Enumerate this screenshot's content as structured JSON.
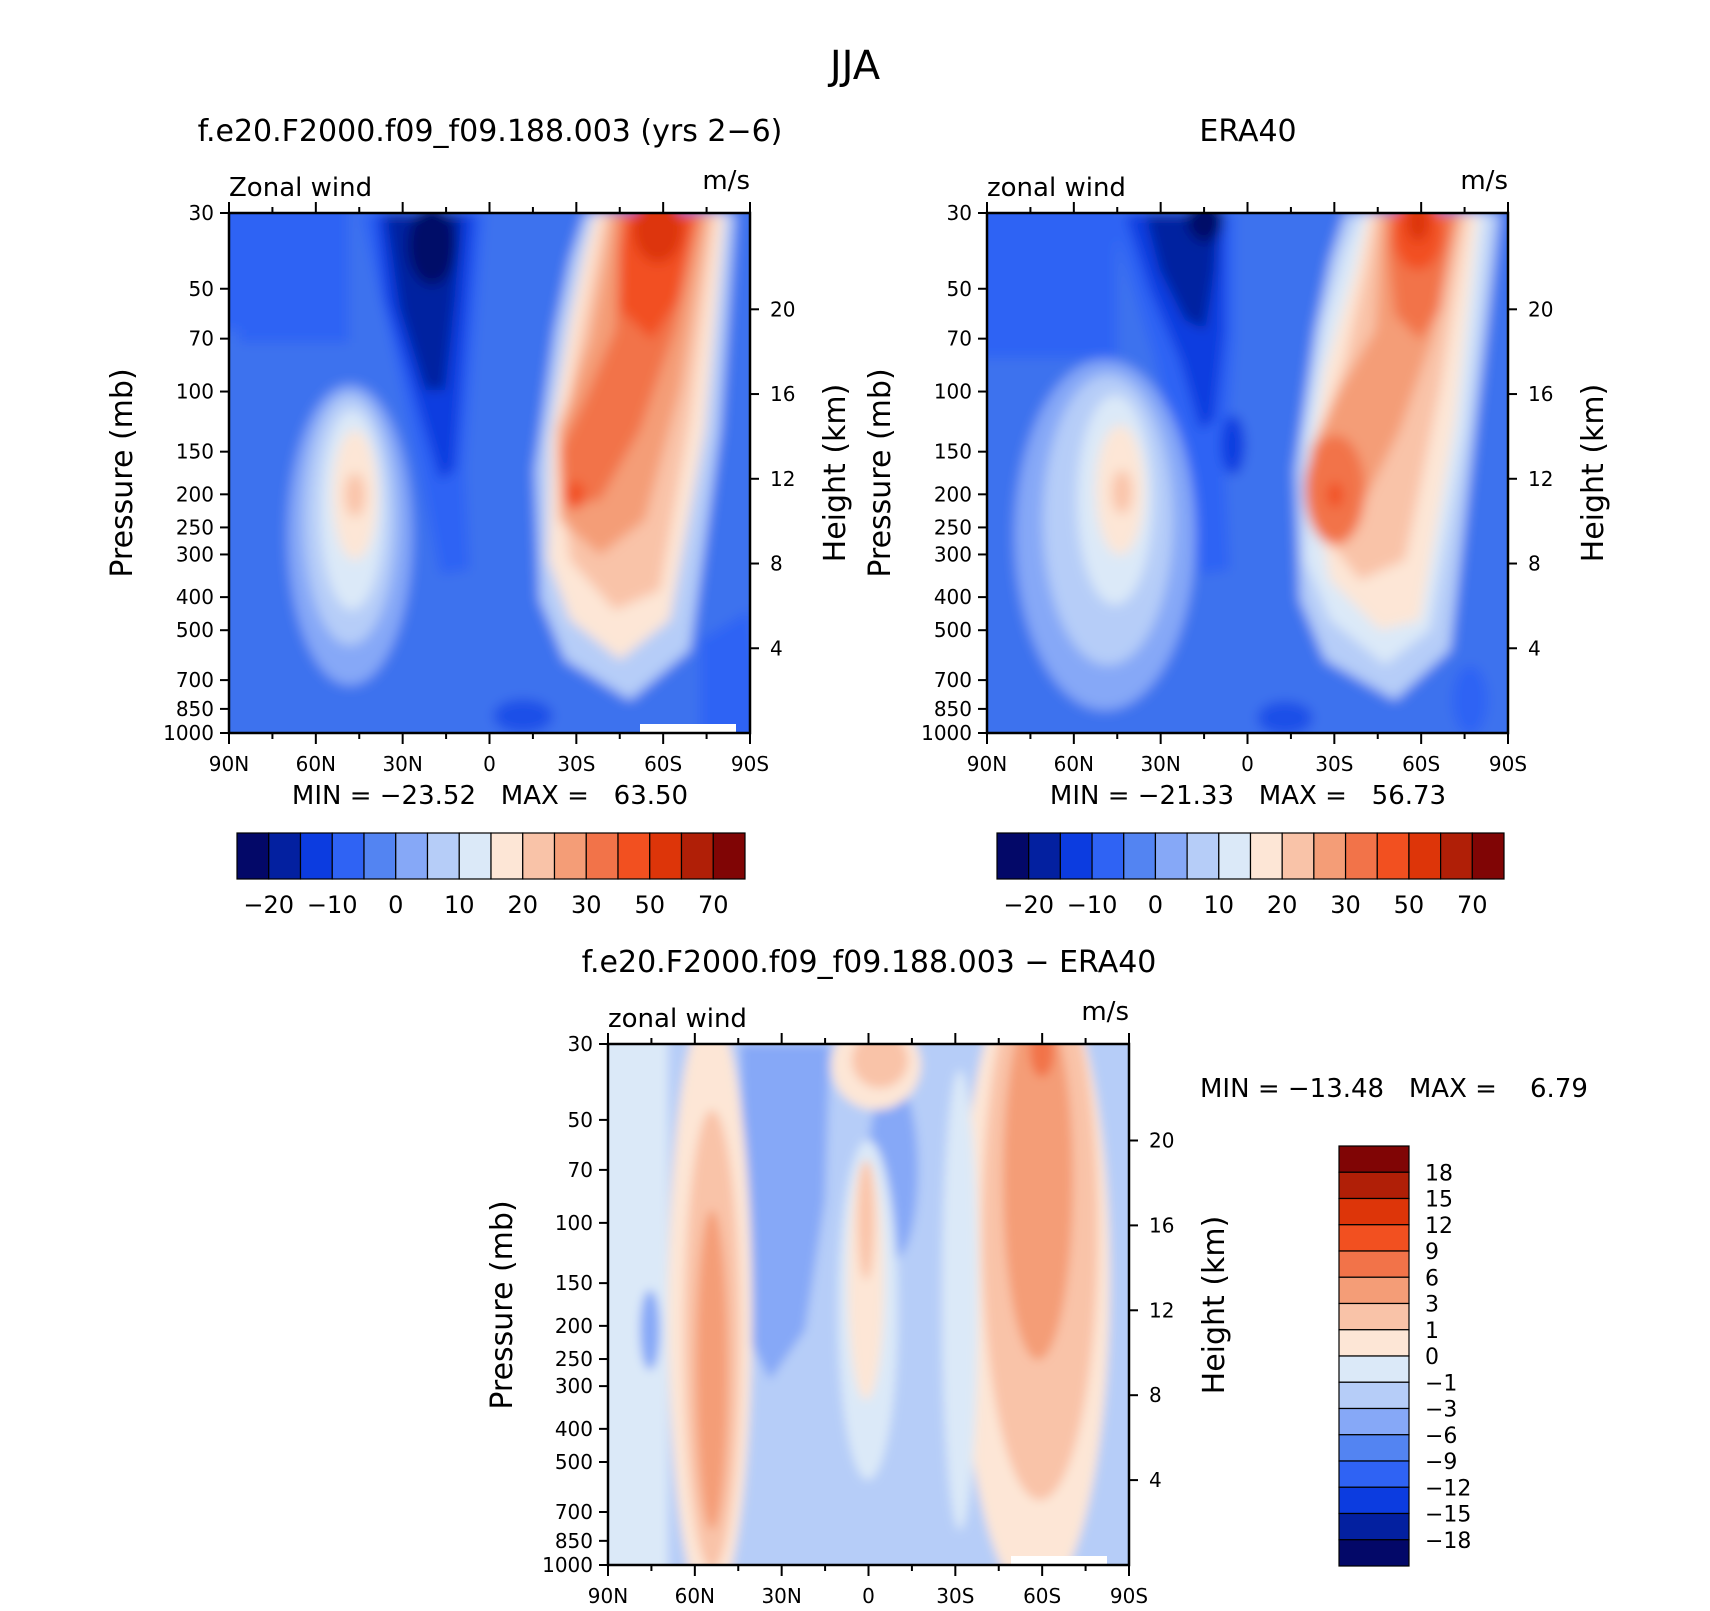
{
  "figure": {
    "title": "JJA"
  },
  "panels": [
    {
      "title": "f.e20.F2000.f09_f09.188.003 (yrs 2−6)",
      "var_label": "Zonal wind",
      "units": "m/s",
      "ylabel": "Pressure (mb)",
      "ylabel_right": "Height (km)",
      "stats": "MIN = −23.52   MAX =   63.50"
    },
    {
      "title": "ERA40",
      "var_label": "zonal wind",
      "units": "m/s",
      "ylabel": "Pressure (mb)",
      "ylabel_right": "Height (km)",
      "stats": "MIN = −21.33   MAX =   56.73"
    },
    {
      "title": "f.e20.F2000.f09_f09.188.003 − ERA40",
      "var_label": "zonal wind",
      "units": "m/s",
      "ylabel": "Pressure (mb)",
      "ylabel_right": "Height (km)",
      "stats": "MIN = −13.48   MAX =    6.79"
    }
  ],
  "chart_data": [
    {
      "type": "heatmap",
      "title": "f.e20.F2000.f09_f09.188.003 (yrs 2−6)",
      "xlabel": "",
      "ylabel": "Pressure (mb)",
      "x_ticks": [
        "90N",
        "60N",
        "30N",
        "0",
        "30S",
        "60S",
        "90S"
      ],
      "x_values": [
        90,
        60,
        30,
        0,
        -30,
        -60,
        -90
      ],
      "y_ticks": [
        30,
        50,
        70,
        100,
        150,
        200,
        250,
        300,
        400,
        500,
        700,
        850,
        1000
      ],
      "y_scale": "log",
      "ylim": [
        1000,
        30
      ],
      "y2_ticks": [
        20,
        16,
        12,
        8,
        4
      ],
      "min": -23.52,
      "max": 63.5,
      "features": [
        {
          "lat": -65,
          "p": 40,
          "value": 55
        },
        {
          "lat": -58,
          "p": 80,
          "value": 45
        },
        {
          "lat": -30,
          "p": 200,
          "value": 50
        },
        {
          "lat": -42,
          "p": 300,
          "value": 30
        },
        {
          "lat": -40,
          "p": 500,
          "value": 15
        },
        {
          "lat": 45,
          "p": 200,
          "value": 18
        },
        {
          "lat": 20,
          "p": 50,
          "value": -20
        },
        {
          "lat": 15,
          "p": 150,
          "value": -10
        }
      ]
    },
    {
      "type": "heatmap",
      "title": "ERA40",
      "xlabel": "",
      "ylabel": "Pressure (mb)",
      "x_ticks": [
        "90N",
        "60N",
        "30N",
        "0",
        "30S",
        "60S",
        "90S"
      ],
      "x_values": [
        90,
        60,
        30,
        0,
        -30,
        -60,
        -90
      ],
      "y_ticks": [
        30,
        50,
        70,
        100,
        150,
        200,
        250,
        300,
        400,
        500,
        700,
        850,
        1000
      ],
      "y_scale": "log",
      "ylim": [
        1000,
        30
      ],
      "y2_ticks": [
        20,
        16,
        12,
        8,
        4
      ],
      "min": -21.33,
      "max": 56.73,
      "features": [
        {
          "lat": -62,
          "p": 40,
          "value": 50
        },
        {
          "lat": -58,
          "p": 90,
          "value": 40
        },
        {
          "lat": -30,
          "p": 200,
          "value": 45
        },
        {
          "lat": -42,
          "p": 300,
          "value": 25
        },
        {
          "lat": -40,
          "p": 500,
          "value": 12
        },
        {
          "lat": 45,
          "p": 200,
          "value": 16
        },
        {
          "lat": 16,
          "p": 40,
          "value": -20
        },
        {
          "lat": 8,
          "p": 150,
          "value": -10
        }
      ]
    },
    {
      "type": "heatmap",
      "title": "f.e20.F2000.f09_f09.188.003 − ERA40",
      "xlabel": "",
      "ylabel": "Pressure (mb)",
      "x_ticks": [
        "90N",
        "60N",
        "30N",
        "0",
        "30S",
        "60S",
        "90S"
      ],
      "x_values": [
        90,
        60,
        30,
        0,
        -30,
        -60,
        -90
      ],
      "y_ticks": [
        30,
        50,
        70,
        100,
        150,
        200,
        250,
        300,
        400,
        500,
        700,
        850,
        1000
      ],
      "y_scale": "log",
      "ylim": [
        1000,
        30
      ],
      "y2_ticks": [
        20,
        16,
        12,
        8,
        4
      ],
      "min": -13.48,
      "max": 6.79,
      "features": [
        {
          "lat": 53,
          "p": 300,
          "value": 4
        },
        {
          "lat": -58,
          "p": 40,
          "value": 7
        },
        {
          "lat": -55,
          "p": 200,
          "value": 3
        },
        {
          "lat": 8,
          "p": 200,
          "value": 2
        },
        {
          "lat": -4,
          "p": 300,
          "value": 3
        },
        {
          "lat": -8,
          "p": 40,
          "value": 2
        },
        {
          "lat": 35,
          "p": 150,
          "value": -5
        },
        {
          "lat": -12,
          "p": 100,
          "value": -6
        },
        {
          "lat": 82,
          "p": 350,
          "value": -5
        }
      ]
    }
  ],
  "colorbars": [
    {
      "orientation": "horizontal",
      "colors": [
        "#030868",
        "#0320a0",
        "#0c3ce0",
        "#2f63f4",
        "#5384f2",
        "#86a8f7",
        "#b6cdf8",
        "#dbe9f8",
        "#fde6d6",
        "#f9c3a8",
        "#f49d77",
        "#f27349",
        "#f25020",
        "#dd3509",
        "#b01f07",
        "#800505"
      ],
      "tick_labels": [
        "−20",
        "−10",
        "0",
        "10",
        "20",
        "30",
        "50",
        "70"
      ],
      "tick_index": [
        1,
        3,
        5,
        7,
        9,
        11,
        13,
        15
      ]
    },
    {
      "orientation": "horizontal",
      "colors": [
        "#030868",
        "#0320a0",
        "#0c3ce0",
        "#2f63f4",
        "#5384f2",
        "#86a8f7",
        "#b6cdf8",
        "#dbe9f8",
        "#fde6d6",
        "#f9c3a8",
        "#f49d77",
        "#f27349",
        "#f25020",
        "#dd3509",
        "#b01f07",
        "#800505"
      ],
      "tick_labels": [
        "−20",
        "−10",
        "0",
        "10",
        "20",
        "30",
        "50",
        "70"
      ],
      "tick_index": [
        1,
        3,
        5,
        7,
        9,
        11,
        13,
        15
      ]
    },
    {
      "orientation": "vertical",
      "colors": [
        "#800505",
        "#b01f07",
        "#dd3509",
        "#f25020",
        "#f27349",
        "#f49d77",
        "#f9c3a8",
        "#fde6d6",
        "#dbe9f8",
        "#b6cdf8",
        "#86a8f7",
        "#5384f2",
        "#2f63f4",
        "#0c3ce0",
        "#0320a0",
        "#030868"
      ],
      "tick_labels": [
        "18",
        "15",
        "12",
        "9",
        "6",
        "3",
        "1",
        "0",
        "−1",
        "−3",
        "−6",
        "−9",
        "−12",
        "−15",
        "−18"
      ]
    }
  ]
}
